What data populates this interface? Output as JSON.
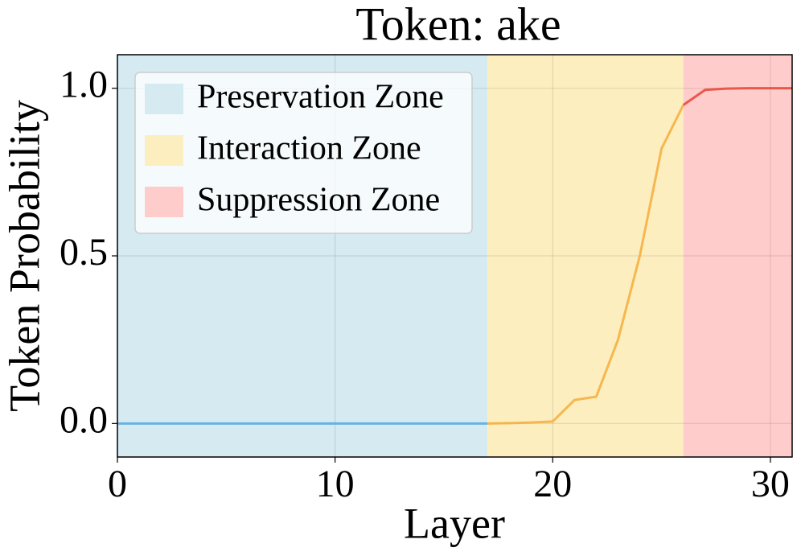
{
  "chart_data": {
    "type": "line",
    "title": "Token: ake",
    "x_label": "Layer",
    "y_label": "Token Probability",
    "xlim": [
      0,
      31
    ],
    "ylim": [
      -0.1,
      1.1
    ],
    "xticks": [
      0,
      10,
      20,
      30
    ],
    "yticks": [
      {
        "value": 0,
        "label": "0.0"
      },
      {
        "value": 0.5,
        "label": "0.5"
      },
      {
        "value": 1,
        "label": "1.0"
      }
    ],
    "grid": true,
    "legend_position": "upper left",
    "zones": [
      {
        "name": "Preservation Zone",
        "color": "#d6eaf2",
        "start": 0,
        "end": 17
      },
      {
        "name": "Interaction Zone",
        "color": "#fdeec0",
        "start": 17,
        "end": 26
      },
      {
        "name": "Suppression Zone",
        "color": "#ffcccc",
        "start": 26,
        "end": 31
      }
    ],
    "series": [
      {
        "color": "#5dade2",
        "x": [
          0,
          1,
          2,
          3,
          4,
          5,
          6,
          7,
          8,
          9,
          10,
          11,
          12,
          13,
          14,
          15,
          16,
          17
        ],
        "values": [
          0,
          0,
          0,
          0,
          0,
          0,
          0,
          0,
          0,
          0,
          0,
          0,
          0,
          0,
          0,
          0,
          0,
          0
        ]
      },
      {
        "color": "#f5b041",
        "x": [
          17,
          18,
          19,
          20,
          21,
          22,
          23,
          24,
          25,
          26
        ],
        "values": [
          0,
          0.001,
          0.003,
          0.006,
          0.07,
          0.08,
          0.25,
          0.5,
          0.82,
          0.95
        ]
      },
      {
        "color": "#e74c3c",
        "x": [
          26,
          27,
          28,
          29,
          30,
          31
        ],
        "values": [
          0.95,
          0.995,
          0.999,
          1,
          1,
          1
        ]
      }
    ]
  }
}
